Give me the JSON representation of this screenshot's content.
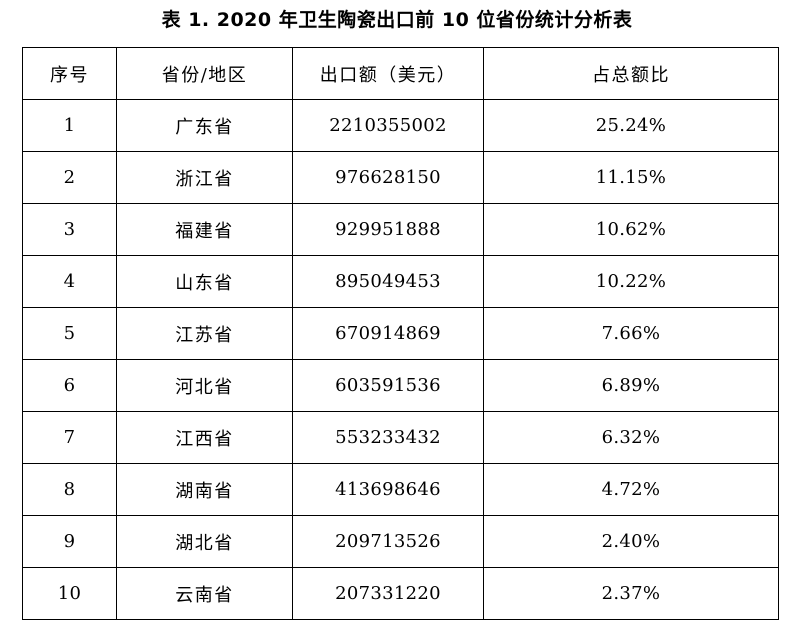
{
  "title": "表 1. 2020 年卫生陶瓷出口前 10 位省份统计分析表",
  "headers": [
    "序号",
    "省份/地区",
    "出口额（美元）",
    "占总额比"
  ],
  "rows": [
    {
      "index": "1",
      "province": "广东省",
      "amount": "2210355002",
      "share": "25.24%"
    },
    {
      "index": "2",
      "province": "浙江省",
      "amount": "976628150",
      "share": "11.15%"
    },
    {
      "index": "3",
      "province": "福建省",
      "amount": "929951888",
      "share": "10.62%"
    },
    {
      "index": "4",
      "province": "山东省",
      "amount": "895049453",
      "share": "10.22%"
    },
    {
      "index": "5",
      "province": "江苏省",
      "amount": "670914869",
      "share": "7.66%"
    },
    {
      "index": "6",
      "province": "河北省",
      "amount": "603591536",
      "share": "6.89%"
    },
    {
      "index": "7",
      "province": "江西省",
      "amount": "553233432",
      "share": "6.32%"
    },
    {
      "index": "8",
      "province": "湖南省",
      "amount": "413698646",
      "share": "4.72%"
    },
    {
      "index": "9",
      "province": "湖北省",
      "amount": "209713526",
      "share": "2.40%"
    },
    {
      "index": "10",
      "province": "云南省",
      "amount": "207331220",
      "share": "2.37%"
    }
  ]
}
